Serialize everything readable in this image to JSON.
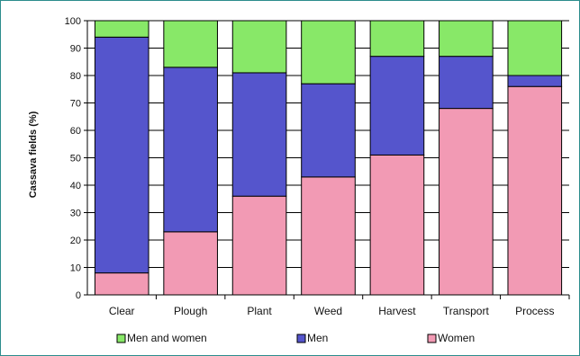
{
  "chart_data": {
    "type": "bar",
    "stacked": true,
    "normalized_percent": true,
    "ylabel": "Cassava fields (%)",
    "xlabel": "",
    "ylim": [
      0,
      100
    ],
    "yticks": [
      0,
      10,
      20,
      30,
      40,
      50,
      60,
      70,
      80,
      90,
      100
    ],
    "grid": true,
    "legend_position": "bottom",
    "categories": [
      "Clear",
      "Plough",
      "Plant",
      "Weed",
      "Harvest",
      "Transport",
      "Process"
    ],
    "series": [
      {
        "name": "Women",
        "color": "#f29ab4",
        "values": [
          8,
          23,
          36,
          43,
          51,
          68,
          76
        ]
      },
      {
        "name": "Men",
        "color": "#5555cc",
        "values": [
          86,
          60,
          45,
          34,
          36,
          19,
          4
        ]
      },
      {
        "name": "Men and women",
        "color": "#88e868",
        "values": [
          6,
          17,
          19,
          23,
          13,
          13,
          20
        ]
      }
    ],
    "legend_order": [
      "Men and women",
      "Men",
      "Women"
    ]
  }
}
